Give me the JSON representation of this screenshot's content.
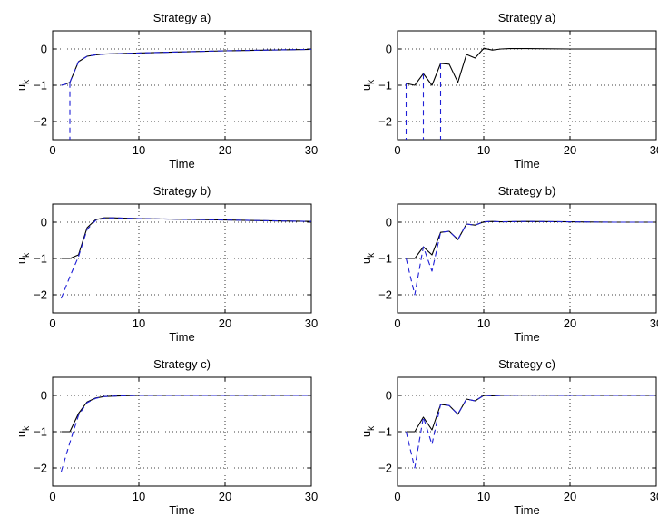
{
  "chart_data": [
    {
      "type": "line",
      "title": "Strategy a)",
      "xlabel": "Time",
      "ylabel": "u",
      "ylabel_sub": "k",
      "xlim": [
        0,
        30
      ],
      "ylim": [
        -2.5,
        0.5
      ],
      "xticks": [
        0,
        10,
        20,
        30
      ],
      "yticks": [
        0,
        -1,
        -2
      ],
      "grid": true,
      "series": [
        {
          "style": "solid",
          "color": "#000000",
          "points": [
            [
              1,
              -1
            ],
            [
              1.5,
              -0.97
            ],
            [
              2,
              -0.92
            ],
            [
              3,
              -0.35
            ],
            [
              4,
              -0.2
            ],
            [
              5,
              -0.16
            ],
            [
              6,
              -0.14
            ],
            [
              10,
              -0.11
            ],
            [
              15,
              -0.08
            ],
            [
              20,
              -0.05
            ],
            [
              25,
              -0.03
            ],
            [
              30,
              -0.01
            ]
          ]
        },
        {
          "style": "dashed",
          "color": "#1f1fd6",
          "points": [
            [
              1,
              -1
            ],
            [
              1.5,
              -0.97
            ],
            [
              2,
              -0.92
            ],
            [
              2,
              -2.5
            ]
          ]
        },
        {
          "style": "dashed",
          "color": "#1f1fd6",
          "points": [
            [
              2,
              -0.92
            ],
            [
              3,
              -0.35
            ],
            [
              4,
              -0.2
            ],
            [
              5,
              -0.16
            ],
            [
              6,
              -0.14
            ],
            [
              10,
              -0.11
            ],
            [
              15,
              -0.08
            ],
            [
              20,
              -0.05
            ],
            [
              25,
              -0.03
            ],
            [
              30,
              -0.01
            ]
          ]
        }
      ]
    },
    {
      "type": "line",
      "title": "Strategy a)",
      "xlabel": "Time",
      "ylabel": "u",
      "ylabel_sub": "k",
      "xlim": [
        0,
        30
      ],
      "ylim": [
        -2.5,
        0.5
      ],
      "xticks": [
        0,
        10,
        20,
        30
      ],
      "yticks": [
        0,
        -1,
        -2
      ],
      "grid": true,
      "series": [
        {
          "style": "solid",
          "color": "#000000",
          "points": [
            [
              1,
              -0.95
            ],
            [
              2,
              -1.0
            ],
            [
              3,
              -0.68
            ],
            [
              4,
              -1.0
            ],
            [
              5,
              -0.4
            ],
            [
              6,
              -0.42
            ],
            [
              7,
              -0.92
            ],
            [
              8,
              -0.15
            ],
            [
              9,
              -0.25
            ],
            [
              10,
              0.02
            ],
            [
              11,
              -0.03
            ],
            [
              12,
              0.0
            ],
            [
              13,
              0.01
            ],
            [
              15,
              0.01
            ],
            [
              20,
              0.0
            ],
            [
              25,
              0.0
            ],
            [
              30,
              0.0
            ]
          ]
        },
        {
          "style": "dashed",
          "color": "#1f1fd6",
          "points": [
            [
              1,
              -0.95
            ],
            [
              1,
              -2.5
            ]
          ]
        },
        {
          "style": "dashed",
          "color": "#1f1fd6",
          "points": [
            [
              3,
              -0.68
            ],
            [
              3,
              -2.5
            ]
          ]
        },
        {
          "style": "dashed",
          "color": "#1f1fd6",
          "points": [
            [
              5,
              -0.4
            ],
            [
              5,
              -2.5
            ]
          ]
        }
      ]
    },
    {
      "type": "line",
      "title": "Strategy b)",
      "xlabel": "Time",
      "ylabel": "u",
      "ylabel_sub": "k",
      "xlim": [
        0,
        30
      ],
      "ylim": [
        -2.5,
        0.5
      ],
      "xticks": [
        0,
        10,
        20,
        30
      ],
      "yticks": [
        0,
        -1,
        -2
      ],
      "grid": true,
      "series": [
        {
          "style": "solid",
          "color": "#000000",
          "points": [
            [
              1,
              -1
            ],
            [
              2,
              -1
            ],
            [
              3,
              -0.9
            ],
            [
              4,
              -0.15
            ],
            [
              5,
              0.07
            ],
            [
              6,
              0.12
            ],
            [
              7,
              0.12
            ],
            [
              10,
              0.1
            ],
            [
              15,
              0.08
            ],
            [
              20,
              0.06
            ],
            [
              25,
              0.04
            ],
            [
              30,
              0.02
            ]
          ]
        },
        {
          "style": "dashed",
          "color": "#1f1fd6",
          "points": [
            [
              1,
              -2.1
            ],
            [
              2,
              -1.5
            ],
            [
              3,
              -0.95
            ],
            [
              4,
              -0.2
            ],
            [
              5,
              0.05
            ],
            [
              6,
              0.11
            ],
            [
              7,
              0.12
            ],
            [
              10,
              0.1
            ],
            [
              15,
              0.08
            ],
            [
              20,
              0.06
            ],
            [
              25,
              0.04
            ],
            [
              30,
              0.02
            ]
          ]
        }
      ]
    },
    {
      "type": "line",
      "title": "Strategy b)",
      "xlabel": "Time",
      "ylabel": "u",
      "ylabel_sub": "k",
      "xlim": [
        0,
        30
      ],
      "ylim": [
        -2.5,
        0.5
      ],
      "xticks": [
        0,
        10,
        20,
        30
      ],
      "yticks": [
        0,
        -1,
        -2
      ],
      "grid": true,
      "series": [
        {
          "style": "solid",
          "color": "#000000",
          "points": [
            [
              1,
              -1
            ],
            [
              2,
              -1
            ],
            [
              3,
              -0.68
            ],
            [
              4,
              -0.9
            ],
            [
              5,
              -0.28
            ],
            [
              6,
              -0.25
            ],
            [
              7,
              -0.48
            ],
            [
              8,
              -0.05
            ],
            [
              9,
              -0.08
            ],
            [
              10,
              0.01
            ],
            [
              11,
              0.02
            ],
            [
              12,
              0.01
            ],
            [
              15,
              0.02
            ],
            [
              20,
              0.01
            ],
            [
              25,
              0.0
            ],
            [
              30,
              0.0
            ]
          ]
        },
        {
          "style": "dashed",
          "color": "#1f1fd6",
          "points": [
            [
              1,
              -1
            ],
            [
              2,
              -2.0
            ],
            [
              3,
              -0.68
            ],
            [
              4,
              -1.35
            ],
            [
              5,
              -0.28
            ],
            [
              6,
              -0.25
            ],
            [
              7,
              -0.48
            ],
            [
              8,
              -0.05
            ],
            [
              9,
              -0.08
            ],
            [
              10,
              0.01
            ],
            [
              11,
              0.02
            ],
            [
              12,
              0.01
            ],
            [
              15,
              0.02
            ],
            [
              20,
              0.01
            ],
            [
              25,
              0.0
            ],
            [
              30,
              0.0
            ]
          ]
        }
      ]
    },
    {
      "type": "line",
      "title": "Strategy c)",
      "xlabel": "Time",
      "ylabel": "u",
      "ylabel_sub": "k",
      "xlim": [
        0,
        30
      ],
      "ylim": [
        -2.5,
        0.5
      ],
      "xticks": [
        0,
        10,
        20,
        30
      ],
      "yticks": [
        0,
        -1,
        -2
      ],
      "grid": true,
      "series": [
        {
          "style": "solid",
          "color": "#000000",
          "points": [
            [
              1,
              -1
            ],
            [
              2,
              -1
            ],
            [
              3,
              -0.5
            ],
            [
              4,
              -0.18
            ],
            [
              5,
              -0.07
            ],
            [
              6,
              -0.03
            ],
            [
              8,
              -0.01
            ],
            [
              10,
              0.0
            ],
            [
              15,
              0.0
            ],
            [
              20,
              0.0
            ],
            [
              25,
              0.0
            ],
            [
              30,
              0.0
            ]
          ]
        },
        {
          "style": "dashed",
          "color": "#1f1fd6",
          "points": [
            [
              1,
              -2.1
            ],
            [
              2,
              -1.3
            ],
            [
              3,
              -0.55
            ],
            [
              4,
              -0.2
            ],
            [
              5,
              -0.08
            ],
            [
              6,
              -0.03
            ],
            [
              8,
              -0.01
            ],
            [
              10,
              0.0
            ],
            [
              15,
              0.0
            ],
            [
              20,
              0.0
            ],
            [
              25,
              0.0
            ],
            [
              30,
              0.0
            ]
          ]
        }
      ]
    },
    {
      "type": "line",
      "title": "Strategy c)",
      "xlabel": "Time",
      "ylabel": "u",
      "ylabel_sub": "k",
      "xlim": [
        0,
        30
      ],
      "ylim": [
        -2.5,
        0.5
      ],
      "xticks": [
        0,
        10,
        20,
        30
      ],
      "yticks": [
        0,
        -1,
        -2
      ],
      "grid": true,
      "series": [
        {
          "style": "solid",
          "color": "#000000",
          "points": [
            [
              1,
              -1
            ],
            [
              2,
              -1
            ],
            [
              3,
              -0.6
            ],
            [
              4,
              -0.95
            ],
            [
              5,
              -0.25
            ],
            [
              6,
              -0.28
            ],
            [
              7,
              -0.52
            ],
            [
              8,
              -0.1
            ],
            [
              9,
              -0.15
            ],
            [
              10,
              0.0
            ],
            [
              11,
              -0.01
            ],
            [
              12,
              0.0
            ],
            [
              15,
              0.01
            ],
            [
              20,
              0.0
            ],
            [
              25,
              0.0
            ],
            [
              30,
              0.0
            ]
          ]
        },
        {
          "style": "dashed",
          "color": "#1f1fd6",
          "points": [
            [
              1,
              -1
            ],
            [
              2,
              -2.0
            ],
            [
              3,
              -0.6
            ],
            [
              4,
              -1.35
            ],
            [
              5,
              -0.25
            ],
            [
              6,
              -0.28
            ],
            [
              7,
              -0.52
            ],
            [
              8,
              -0.1
            ],
            [
              9,
              -0.15
            ],
            [
              10,
              0.0
            ],
            [
              11,
              -0.01
            ],
            [
              12,
              0.0
            ],
            [
              15,
              0.01
            ],
            [
              20,
              0.0
            ],
            [
              25,
              0.0
            ],
            [
              30,
              0.0
            ]
          ]
        }
      ]
    }
  ]
}
